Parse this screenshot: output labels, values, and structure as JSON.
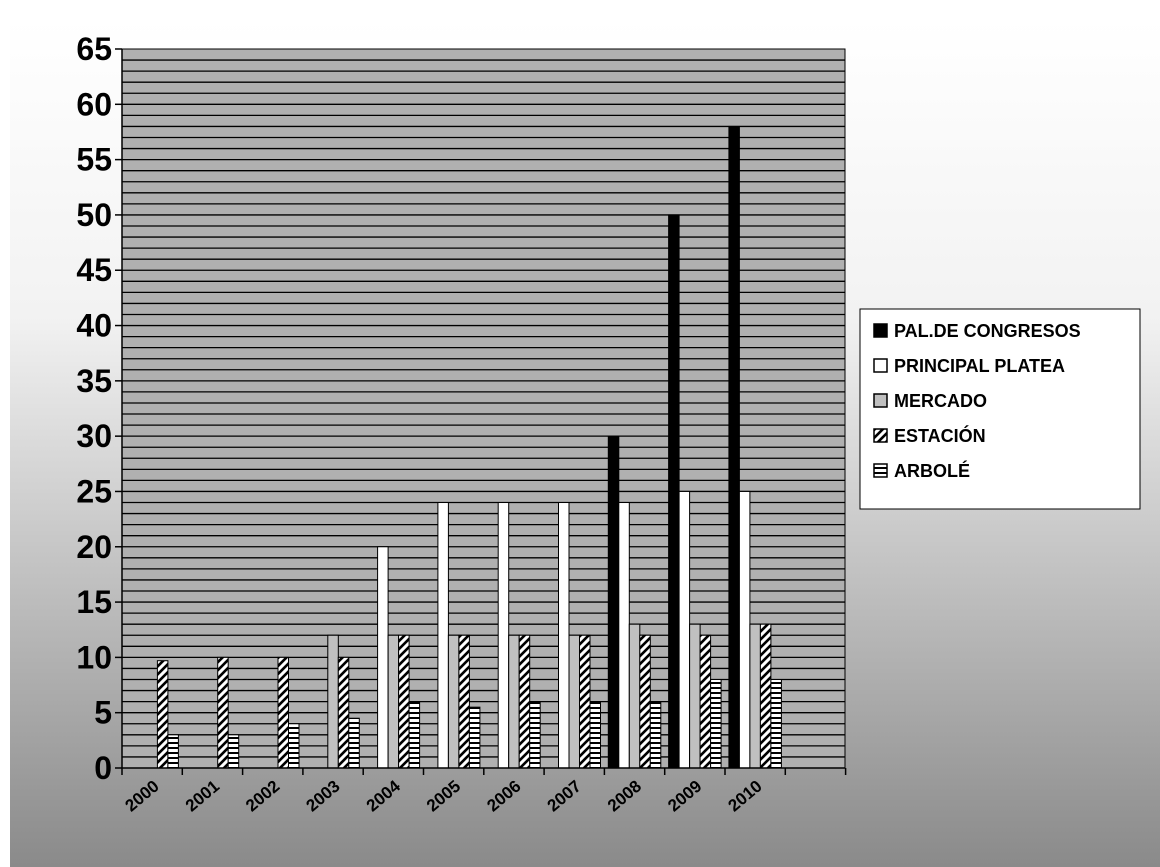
{
  "chart_data": {
    "type": "bar",
    "categories": [
      "2000",
      "2001",
      "2002",
      "2003",
      "2004",
      "2005",
      "2006",
      "2007",
      "2008",
      "2009",
      "2010"
    ],
    "series": [
      {
        "name": "PAL.DE CONGRESOS",
        "fill": "solid-black",
        "values": [
          0,
          0,
          0,
          0,
          0,
          0,
          0,
          0,
          30,
          50,
          58
        ]
      },
      {
        "name": "PRINCIPAL PLATEA",
        "fill": "white",
        "values": [
          0,
          0,
          0,
          0,
          20,
          24,
          24,
          24,
          24,
          25,
          25
        ]
      },
      {
        "name": "MERCADO",
        "fill": "light-gray",
        "values": [
          0,
          0,
          0,
          12,
          12,
          12,
          12,
          12,
          13,
          13,
          13
        ]
      },
      {
        "name": "ESTACIÓN",
        "fill": "diagonal-hatch",
        "values": [
          9.7,
          10,
          10,
          10,
          12,
          12,
          12,
          12,
          12,
          12,
          13
        ]
      },
      {
        "name": "ARBOLÉ",
        "fill": "horizontal-hatch",
        "values": [
          3,
          3,
          4,
          4.5,
          6,
          5.5,
          6,
          6,
          6,
          8,
          8
        ]
      }
    ],
    "y_ticks": [
      "0",
      "5",
      "10",
      "15",
      "20",
      "25",
      "30",
      "35",
      "40",
      "45",
      "50",
      "55",
      "60",
      "65"
    ],
    "ylim": [
      0,
      65
    ],
    "grid": "horizontal lines every 1 unit",
    "legend_position": "right",
    "plot_background": "striped gray",
    "page_background": "gradient white to gray"
  }
}
